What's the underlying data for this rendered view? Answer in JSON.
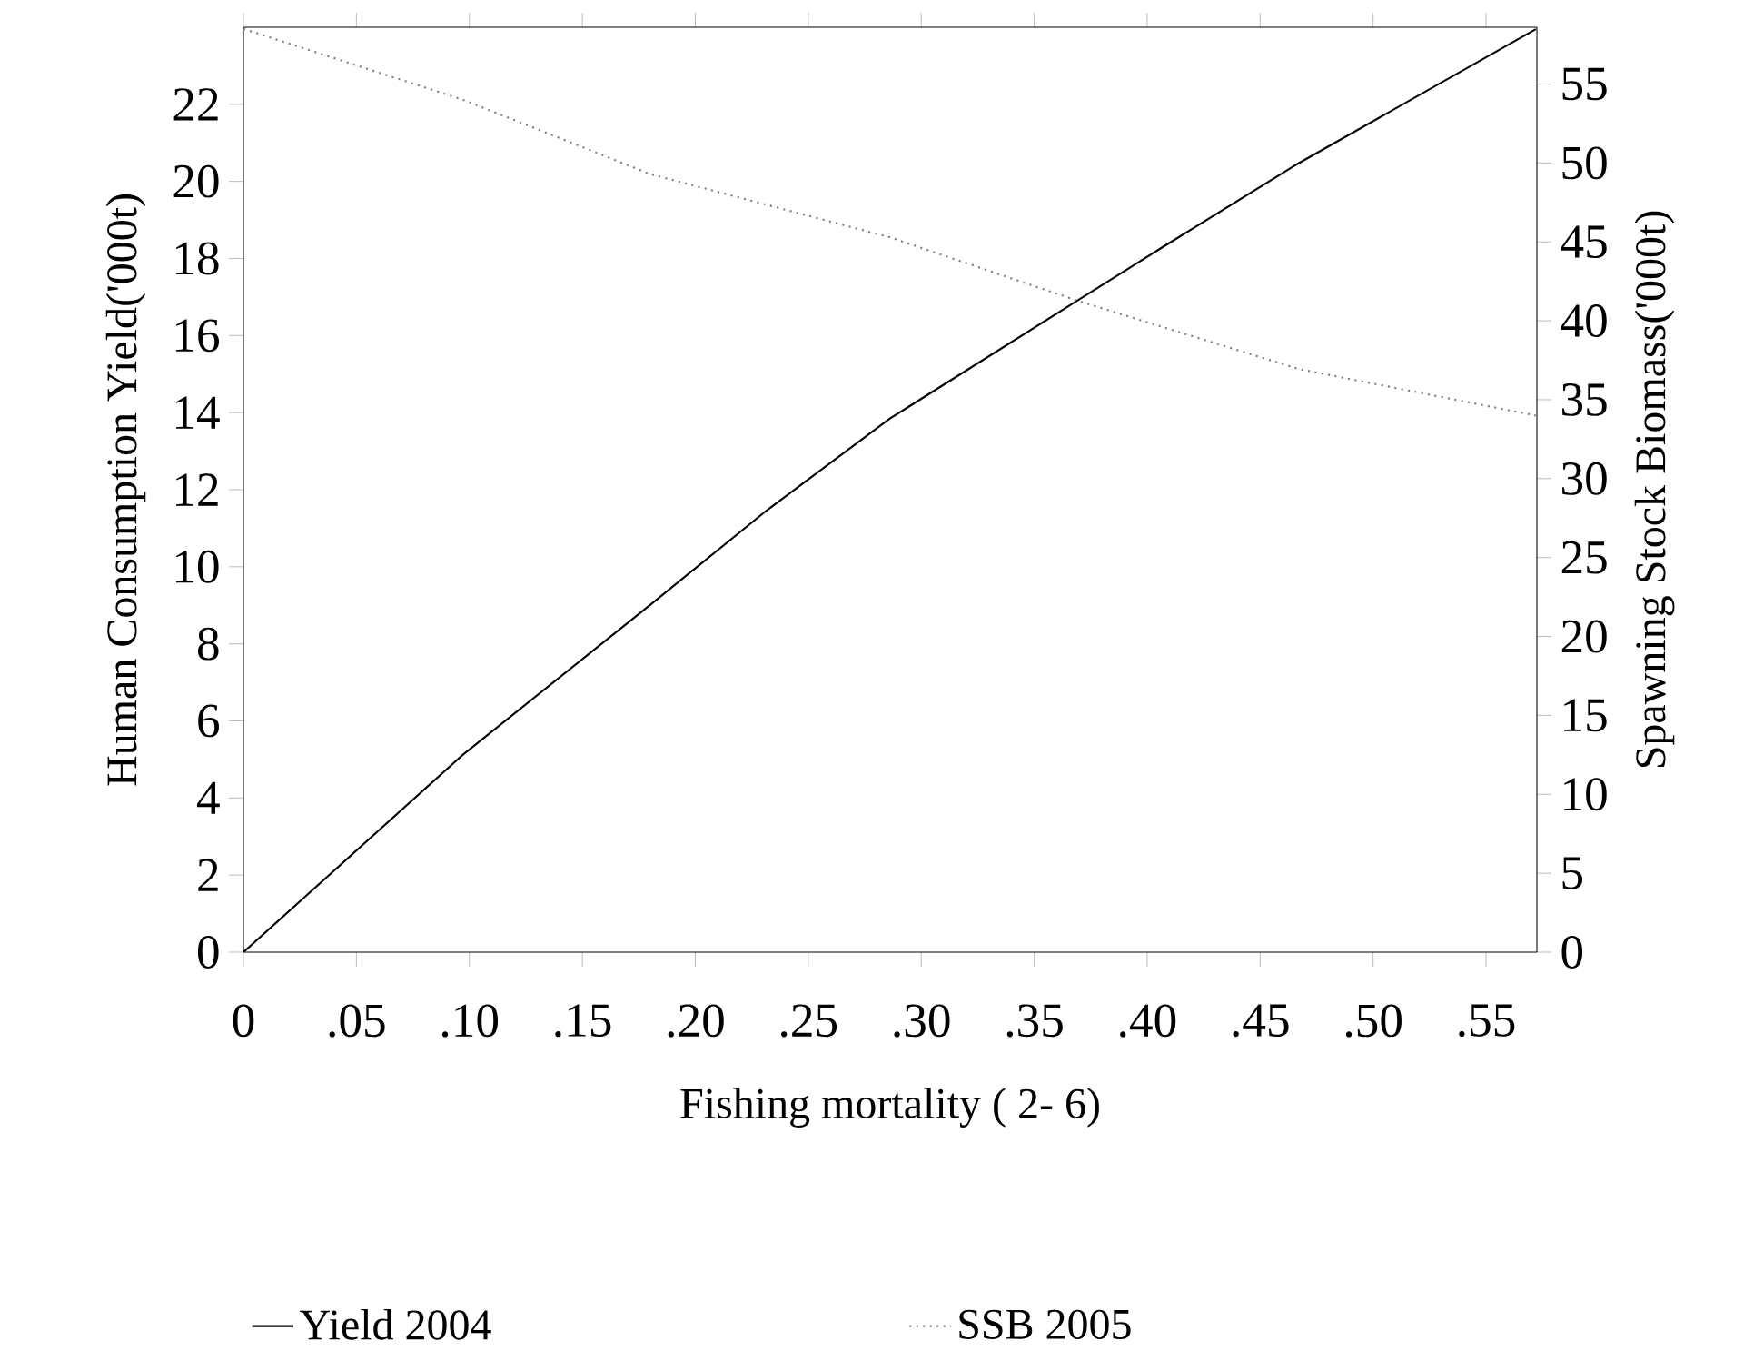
{
  "chart_data": {
    "type": "line",
    "xlabel": "Fishing mortality ( 2- 6)",
    "ylabel": "Human Consumption Yield('000t)",
    "y2label": "Spawning Stock Biomass('000t)",
    "x": [
      0,
      0.0973,
      0.18,
      0.232,
      0.286,
      0.3686,
      0.407,
      0.467,
      0.572
    ],
    "series": [
      {
        "name": "Yield 2004",
        "color": "#000000",
        "line_style": "solid",
        "values": [
          0,
          5.13,
          9.01,
          11.48,
          13.84,
          16.89,
          18.3,
          20.47,
          23.95
        ]
      },
      {
        "name": "SSB 2005",
        "color": "#808080",
        "line_style": "dotted",
        "axis": "y2",
        "values": [
          58.5,
          54.0,
          49.3,
          null,
          45.3,
          41.3,
          null,
          36.95,
          34.0
        ]
      }
    ],
    "xlim": [
      0,
      0.5725
    ],
    "xticks": [
      0,
      {
        "value": 0.05,
        "label": ".05"
      },
      {
        "value": 0.1,
        "label": ".10"
      },
      {
        "value": 0.15,
        "label": ".15"
      },
      {
        "value": 0.2,
        "label": ".20"
      },
      {
        "value": 0.25,
        "label": ".25"
      },
      {
        "value": 0.3,
        "label": ".30"
      },
      {
        "value": 0.35,
        "label": ".35"
      },
      {
        "value": 0.4,
        "label": ".40"
      },
      {
        "value": 0.45,
        "label": ".45"
      },
      {
        "value": 0.5,
        "label": ".50"
      },
      {
        "value": 0.55,
        "label": ".55"
      }
    ],
    "ylim": [
      0,
      24
    ],
    "yticks": [
      0,
      2,
      4,
      6,
      8,
      10,
      12,
      14,
      16,
      18,
      20,
      22
    ],
    "y2lim": [
      0,
      58.6
    ],
    "y2ticks": [
      0,
      5,
      10,
      15,
      20,
      25,
      30,
      35,
      40,
      45,
      50,
      55
    ],
    "grid": false,
    "legend": "bottom"
  }
}
